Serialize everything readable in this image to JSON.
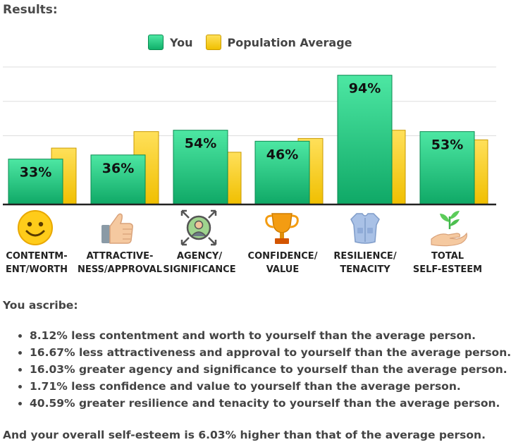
{
  "heading": "Results:",
  "legend": {
    "you": "You",
    "population": "Population Average"
  },
  "colors": {
    "you_top": "#4de7a3",
    "you_bottom": "#0fa866",
    "pop_top": "#ffe05a",
    "pop_bottom": "#f0bf00"
  },
  "chart_data": {
    "type": "bar",
    "categories": [
      "CONTENTMENT/WORTH",
      "ATTRACTIVENESS/APPROVAL",
      "AGENCY/SIGNIFICANCE",
      "CONFIDENCE/VALUE",
      "RESILIENCE/TENACITY",
      "TOTAL SELF-ESTEEM"
    ],
    "series": [
      {
        "name": "You",
        "values": [
          33,
          36,
          54,
          46,
          94,
          53
        ],
        "labels": [
          "33%",
          "36%",
          "54%",
          "46%",
          "94%",
          "53%"
        ]
      },
      {
        "name": "Population Average",
        "values": [
          41,
          53,
          38,
          48,
          54,
          47
        ]
      }
    ],
    "ylim": [
      0,
      100
    ],
    "title": "",
    "xlabel": "",
    "ylabel": ""
  },
  "category_labels": [
    {
      "line1": "CONTENTM-",
      "line2": "ENT/WORTH",
      "icon": "smiley-face-icon"
    },
    {
      "line1": "ATTRACTIVE-",
      "line2": "NESS/APPROVAL",
      "icon": "thumbs-up-icon"
    },
    {
      "line1": "AGENCY/",
      "line2": "SIGNIFICANCE",
      "icon": "person-target-icon"
    },
    {
      "line1": "CONFIDENCE/",
      "line2": "VALUE",
      "icon": "trophy-icon"
    },
    {
      "line1": "RESILIENCE/",
      "line2": "TENACITY",
      "icon": "armor-vest-icon"
    },
    {
      "line1": "TOTAL",
      "line2": "SELF-ESTEEM",
      "icon": "plant-in-hand-icon"
    }
  ],
  "ascribe_title": "You ascribe:",
  "findings": [
    "8.12% less contentment and worth to yourself than the average person.",
    "16.67% less attractiveness and approval to yourself than the average person.",
    "16.03% greater agency and significance to yourself than the average person.",
    "1.71% less confidence and value to yourself than the average person.",
    "40.59% greater resilience and tenacity to yourself than the average person."
  ],
  "summary": "And your overall self-esteem is 6.03% higher than that of the average person."
}
